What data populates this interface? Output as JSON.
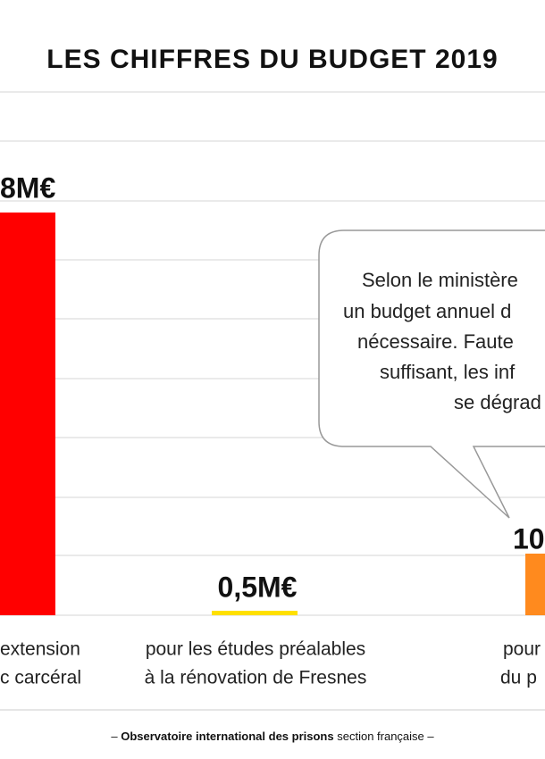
{
  "title": "LES CHIFFRES DU BUDGET 2019",
  "bars": [
    {
      "value_label": "8M€",
      "caption": [
        "extension",
        "c carcéral"
      ]
    },
    {
      "value_label": "0,5M€",
      "caption": [
        "pour les études préalables",
        "à la rénovation de Fresnes"
      ]
    },
    {
      "value_label": "10",
      "caption": [
        "pour",
        "du p"
      ]
    }
  ],
  "callout": {
    "lines": [
      "Selon le ministère",
      "un budget annuel d",
      "nécessaire. Faute",
      "suffisant, les inf",
      "se dégrad"
    ]
  },
  "footer": {
    "open": "–",
    "bold": "Observatoire international des prisons",
    "rest": "section française –"
  }
}
